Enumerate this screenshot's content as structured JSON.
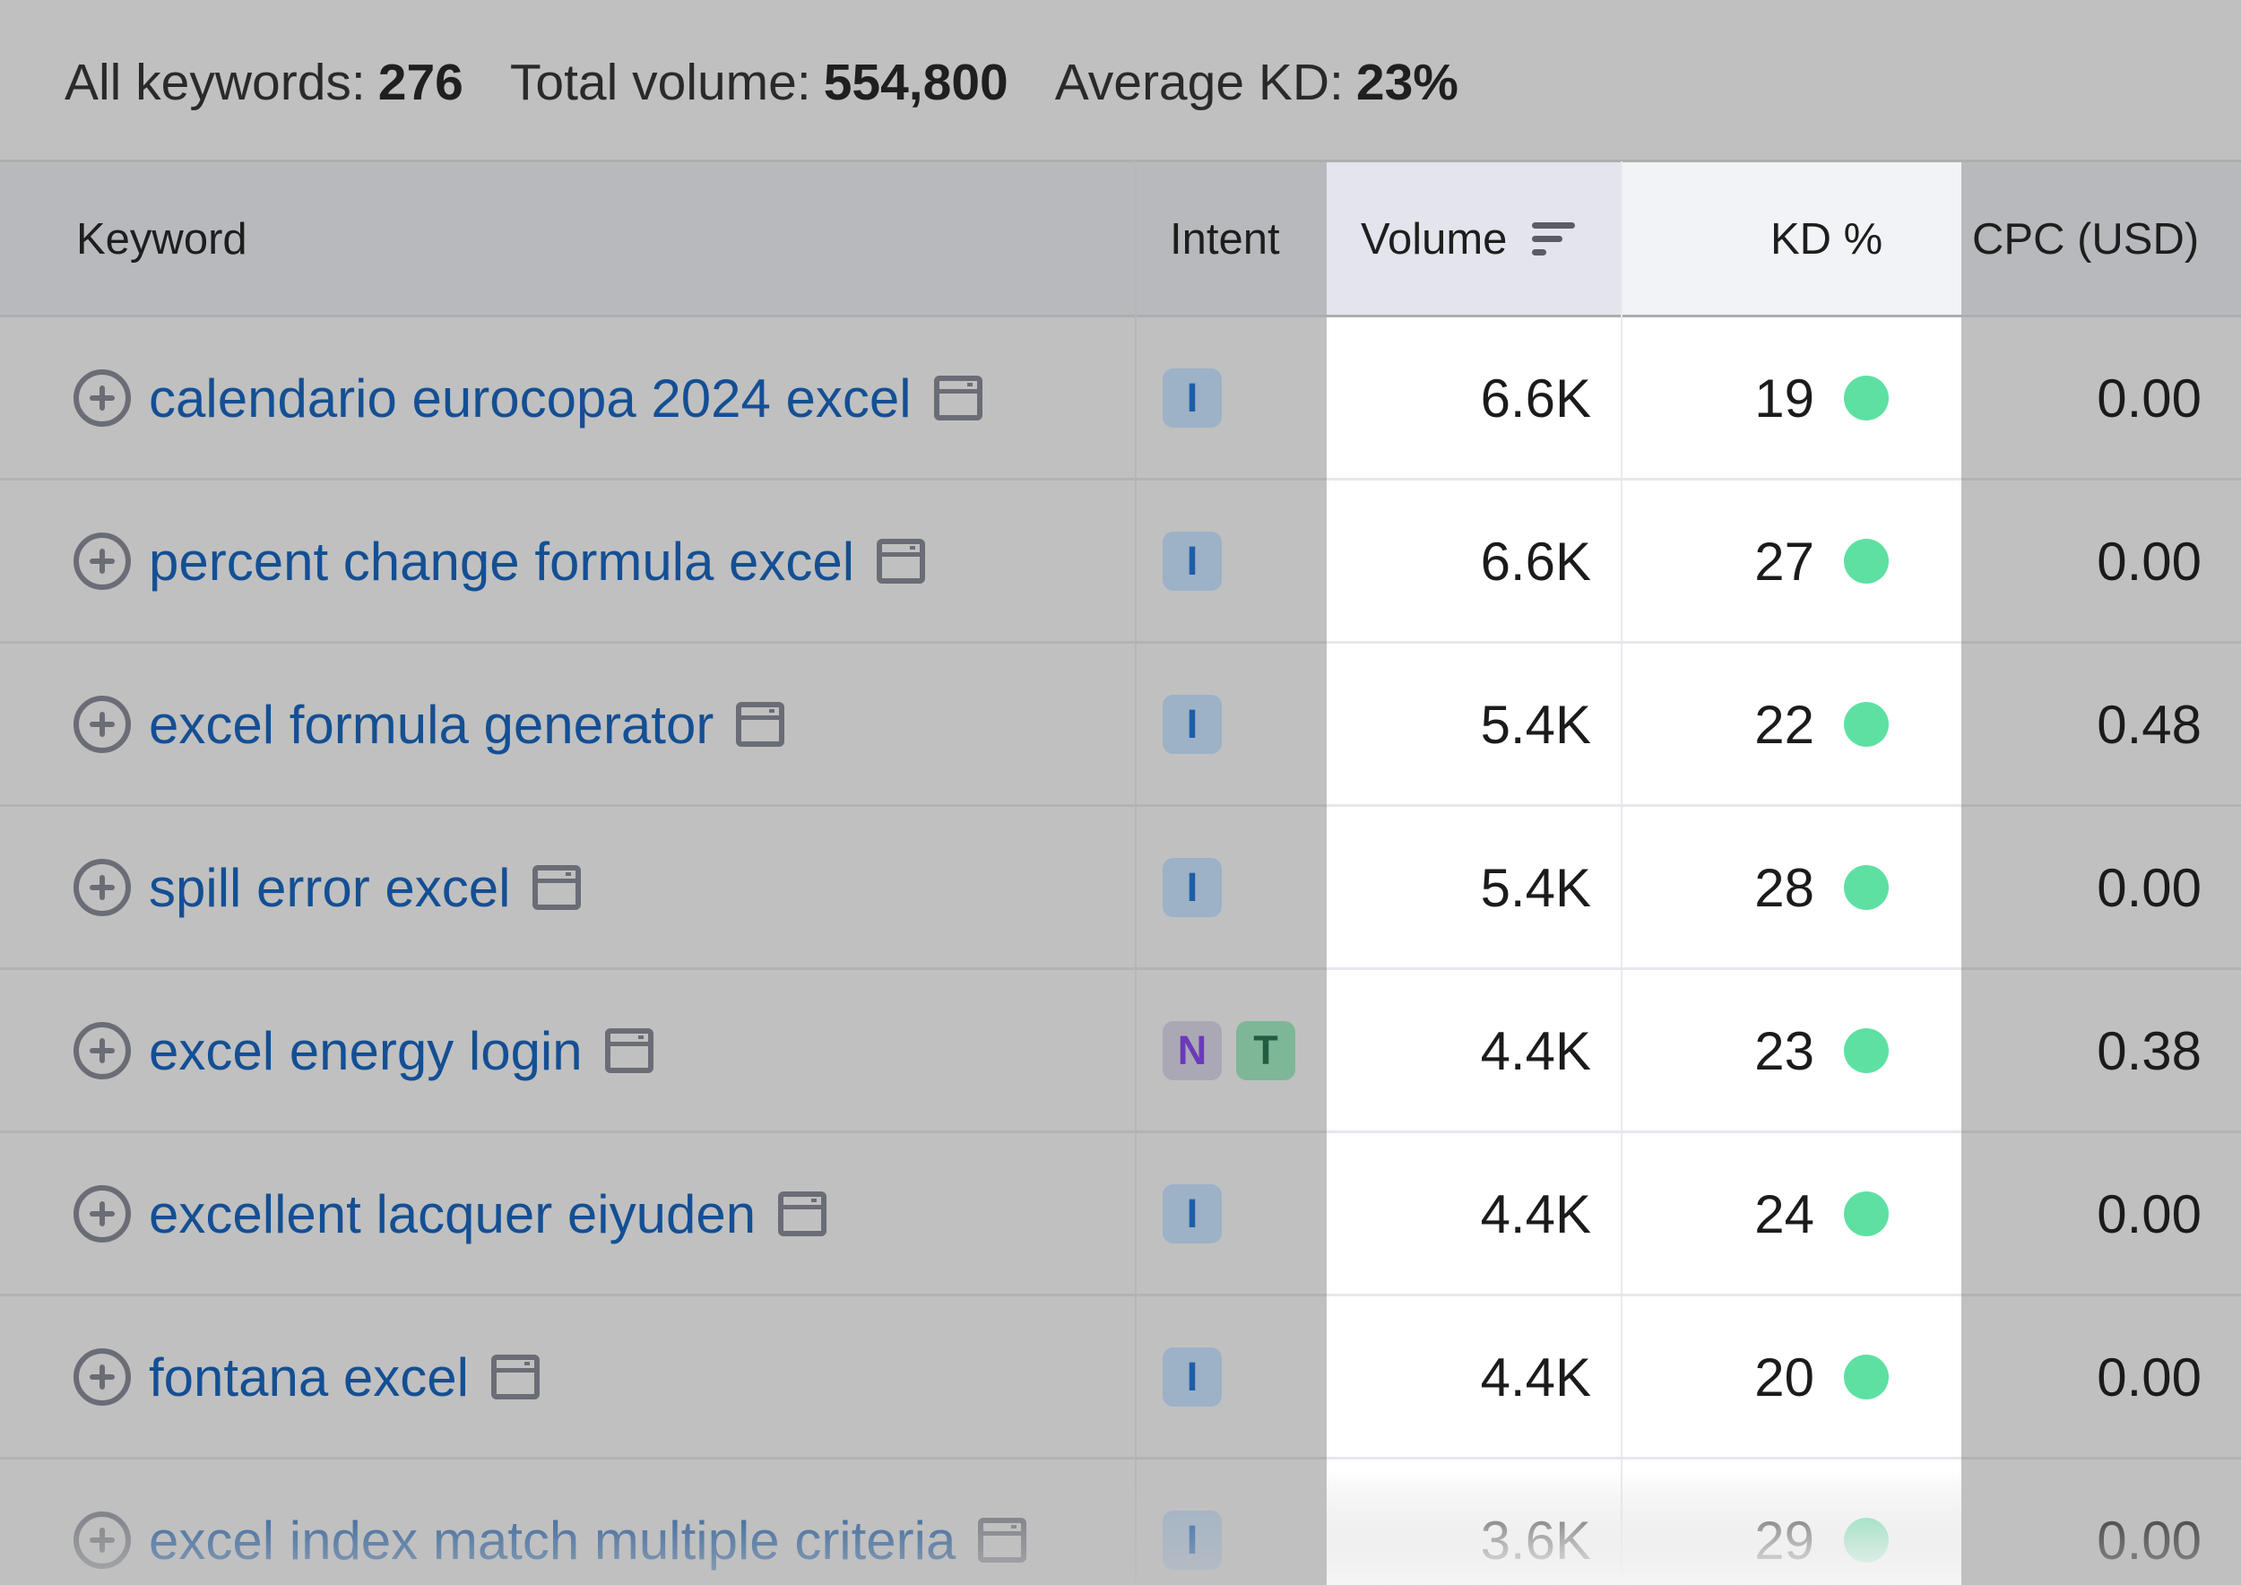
{
  "summary": {
    "all_keywords_label": "All keywords:",
    "all_keywords_value": "276",
    "total_volume_label": "Total volume:",
    "total_volume_value": "554,800",
    "average_kd_label": "Average KD:",
    "average_kd_value": "23%"
  },
  "columns": {
    "keyword": "Keyword",
    "intent": "Intent",
    "volume": "Volume",
    "kd": "KD %",
    "cpc": "CPC (USD)"
  },
  "colors": {
    "link": "#144f94",
    "kd_easy": "#5ee0a2",
    "intent_informational": "#9db1c7",
    "intent_navigational": "#aaa8b5",
    "intent_transactional": "#7db797"
  },
  "rows": [
    {
      "keyword": "calendario eurocopa 2024 excel",
      "intents": [
        "I"
      ],
      "volume": "6.6K",
      "kd": "19",
      "cpc": "0.00"
    },
    {
      "keyword": "percent change formula excel",
      "intents": [
        "I"
      ],
      "volume": "6.6K",
      "kd": "27",
      "cpc": "0.00"
    },
    {
      "keyword": "excel formula generator",
      "intents": [
        "I"
      ],
      "volume": "5.4K",
      "kd": "22",
      "cpc": "0.48"
    },
    {
      "keyword": "spill error excel",
      "intents": [
        "I"
      ],
      "volume": "5.4K",
      "kd": "28",
      "cpc": "0.00"
    },
    {
      "keyword": "excel energy login",
      "intents": [
        "N",
        "T"
      ],
      "volume": "4.4K",
      "kd": "23",
      "cpc": "0.38"
    },
    {
      "keyword": "excellent lacquer eiyuden",
      "intents": [
        "I"
      ],
      "volume": "4.4K",
      "kd": "24",
      "cpc": "0.00"
    },
    {
      "keyword": "fontana excel",
      "intents": [
        "I"
      ],
      "volume": "4.4K",
      "kd": "20",
      "cpc": "0.00"
    },
    {
      "keyword": "excel index match multiple criteria",
      "intents": [
        "I"
      ],
      "volume": "3.6K",
      "kd": "29",
      "cpc": "0.00"
    }
  ]
}
